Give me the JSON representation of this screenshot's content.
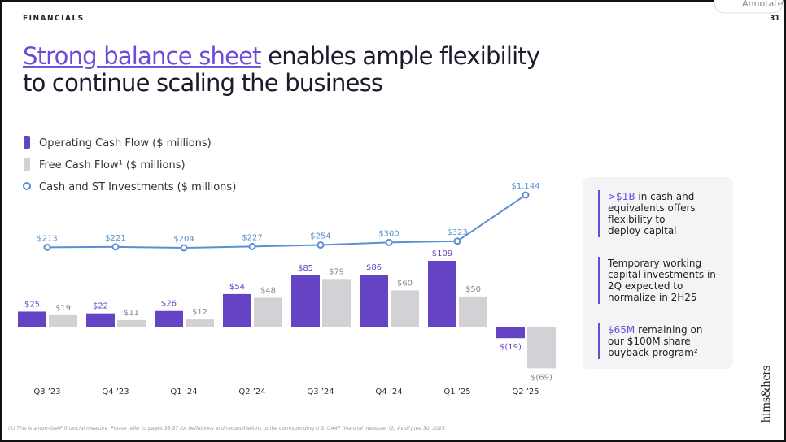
{
  "header": {
    "section": "FINANCIALS",
    "page": "31",
    "button": "Annotate"
  },
  "title": {
    "highlight": "Strong balance sheet",
    "line1_rest": " enables ample flexibility",
    "line2": "to continue scaling the business"
  },
  "chart_data": {
    "type": "bar",
    "categories": [
      "Q3 ’23",
      "Q4 ’23",
      "Q1 ’24",
      "Q2 ’24",
      "Q3 ’24",
      "Q4 ’24",
      "Q1 ’25",
      "Q2 ’25"
    ],
    "ylim": [
      -90,
      230
    ],
    "y2lim": [
      -2170,
      1275
    ],
    "series": [
      {
        "name": "Operating Cash Flow ($ millions)",
        "color": "#6443c4",
        "values": [
          25,
          22,
          26,
          54,
          85,
          86,
          109,
          -19
        ],
        "value_labels": [
          "$25",
          "$22",
          "$26",
          "$54",
          "$85",
          "$86",
          "$109",
          "$(19)"
        ]
      },
      {
        "name": "Free Cash Flow¹ ($ millions)",
        "color": "#d3d1d6",
        "values": [
          19,
          11,
          12,
          48,
          79,
          60,
          50,
          -69
        ],
        "value_labels": [
          "$19",
          "$11",
          "$12",
          "$48",
          "$79",
          "$60",
          "$50",
          "$(69)"
        ]
      },
      {
        "name": "Cash and ST Investments ($ millions)",
        "color": "#5b8fd2",
        "axis": "y2",
        "values": [
          213,
          221,
          204,
          227,
          254,
          300,
          323,
          1144
        ],
        "value_labels": [
          "$213",
          "$221",
          "$204",
          "$227",
          "$254",
          "$300",
          "$323",
          "$1,144"
        ]
      }
    ]
  },
  "notes": [
    {
      "highlight": ">$1B",
      "lines": [
        " in cash and",
        "equivalents offers",
        "flexibility to",
        "deploy capital"
      ]
    },
    {
      "lines": [
        "Temporary working",
        "capital investments in",
        "2Q expected to",
        "normalize in 2H25"
      ]
    },
    {
      "highlight": "$65M",
      "lines": [
        " remaining on",
        "our $100M share",
        "buyback program²"
      ]
    }
  ],
  "logo": "hims&hers",
  "footnote": "(1) This is a non-GAAP financial measure. Please refer to pages 35-37 for definitions and reconciliations to the corresponding U.S. GAAP financial measure. (2) As of June 30, 2025."
}
